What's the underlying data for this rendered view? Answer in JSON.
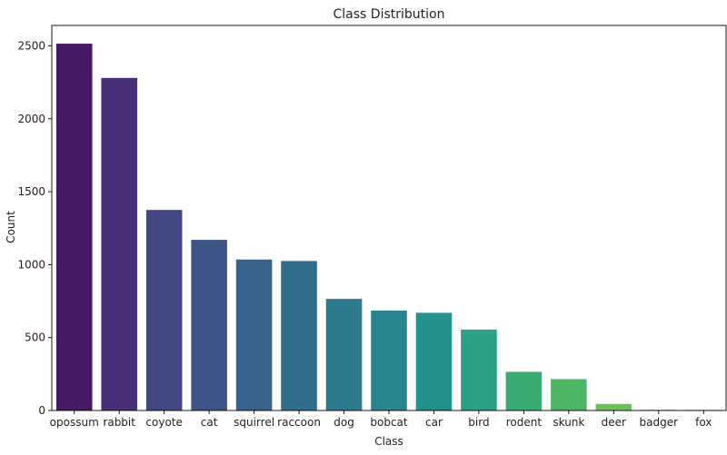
{
  "chart_data": {
    "type": "bar",
    "title": "Class Distribution",
    "xlabel": "Class",
    "ylabel": "Count",
    "categories": [
      "opossum",
      "rabbit",
      "coyote",
      "cat",
      "squirrel",
      "raccoon",
      "dog",
      "bobcat",
      "car",
      "bird",
      "rodent",
      "skunk",
      "deer",
      "badger",
      "fox"
    ],
    "values": [
      2515,
      2280,
      1375,
      1170,
      1035,
      1025,
      765,
      685,
      670,
      555,
      265,
      215,
      45,
      5,
      5
    ],
    "ylim": [
      0,
      2640
    ],
    "yticks": [
      0,
      500,
      1000,
      1500,
      2000,
      2500
    ],
    "grid": false,
    "legend": "none",
    "colors": [
      "#461a63",
      "#483077",
      "#434882",
      "#3c5486",
      "#38628a",
      "#336d8c",
      "#2d7a8e",
      "#28858d",
      "#23928b",
      "#2ba183",
      "#3aab72",
      "#4fb566",
      "#6fc05a",
      "#9acb3c",
      "#b6d334"
    ]
  }
}
